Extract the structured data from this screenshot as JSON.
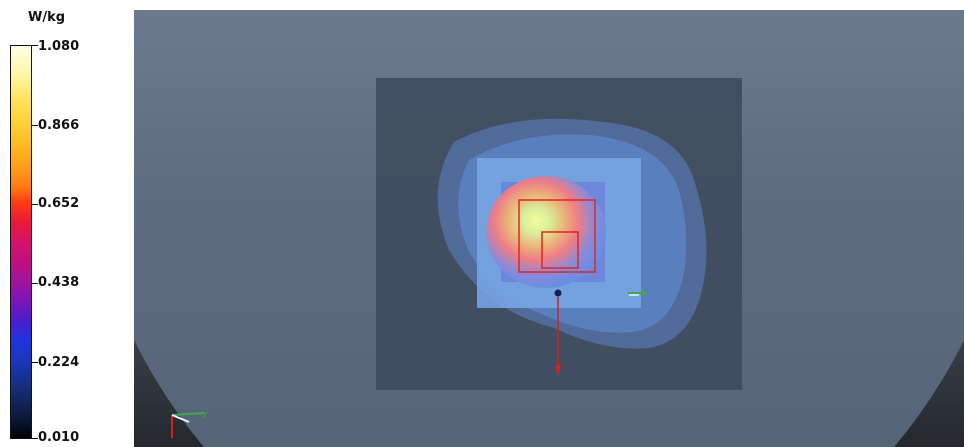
{
  "legend": {
    "unit": "W/kg",
    "ticks": [
      "1.080",
      "0.866",
      "0.652",
      "0.438",
      "0.224",
      "0.010"
    ]
  },
  "viewport": {
    "axis_triad_icon": "xyz-axis-icon",
    "colors": {
      "background": "#5f6d80",
      "phantom_plate": "#3f4c5e",
      "hotspot": "#ffee77",
      "outline": "#e32424"
    }
  }
}
